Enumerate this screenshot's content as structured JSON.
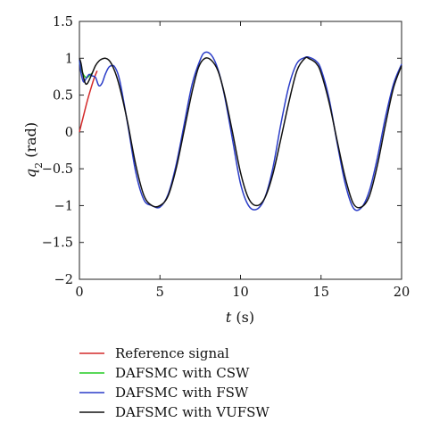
{
  "chart_data": {
    "type": "line",
    "title": "",
    "xlabel_var": "t",
    "xlabel_unit": " (s)",
    "ylabel_var": "q",
    "ylabel_sub": "2",
    "ylabel_unit": " (rad)",
    "xlim": [
      0,
      20
    ],
    "ylim": [
      -2,
      1.5
    ],
    "xticks": [
      0,
      5,
      10,
      15,
      20
    ],
    "xtick_labels": [
      "0",
      "5",
      "10",
      "15",
      "20"
    ],
    "yticks": [
      1.5,
      1,
      0.5,
      0,
      -0.5,
      -1,
      -1.5,
      -2
    ],
    "ytick_labels": [
      "1.5",
      "1",
      "0.5",
      "0",
      "−0.5",
      "−1",
      "−1.5",
      "−2"
    ],
    "grid": false,
    "legend_position": "below",
    "series": [
      {
        "name": "Reference signal",
        "color": "#d42a2a",
        "x": [
          0,
          0.15,
          0.3,
          0.5,
          0.7,
          0.9,
          1.1
        ],
        "y": [
          0,
          0.13,
          0.26,
          0.43,
          0.58,
          0.72,
          0.83
        ]
      },
      {
        "name": "DAFSMC with CSW",
        "color": "#22cc22",
        "x": [
          0,
          0.1,
          0.2,
          0.3,
          0.4,
          0.5,
          0.6,
          0.8
        ],
        "y": [
          0.95,
          0.86,
          0.8,
          0.76,
          0.74,
          0.74,
          0.76,
          0.8
        ]
      },
      {
        "name": "DAFSMC with FSW",
        "color": "#2a3cc8",
        "x": [
          0,
          0.1,
          0.25,
          0.4,
          0.6,
          0.8,
          1.0,
          1.2,
          1.4,
          1.6,
          1.8,
          2.0,
          2.2,
          2.5,
          3.0,
          3.5,
          4.0,
          4.5,
          5.0,
          5.5,
          6.0,
          6.5,
          7.0,
          7.5,
          7.8,
          8.2,
          8.6,
          9.0,
          9.5,
          10.0,
          10.5,
          11.0,
          11.5,
          12.0,
          12.5,
          13.0,
          13.5,
          14.0,
          14.3,
          14.7,
          15.0,
          15.5,
          16.0,
          16.5,
          17.0,
          17.5,
          18.0,
          18.5,
          19.0,
          19.5,
          20.0
        ],
        "y": [
          0.98,
          0.8,
          0.68,
          0.72,
          0.78,
          0.76,
          0.74,
          0.63,
          0.66,
          0.78,
          0.87,
          0.9,
          0.88,
          0.7,
          0.1,
          -0.55,
          -0.92,
          -1.0,
          -1.02,
          -0.85,
          -0.45,
          0.1,
          0.65,
          0.98,
          1.08,
          1.04,
          0.85,
          0.5,
          -0.1,
          -0.7,
          -1.0,
          -1.05,
          -0.9,
          -0.5,
          0.1,
          0.62,
          0.93,
          1.01,
          1.01,
          0.96,
          0.85,
          0.45,
          -0.15,
          -0.7,
          -1.03,
          -1.03,
          -0.8,
          -0.35,
          0.2,
          0.65,
          0.92
        ]
      },
      {
        "name": "DAFSMC with VUFSW",
        "color": "#111111",
        "x": [
          0,
          0.1,
          0.2,
          0.3,
          0.4,
          0.5,
          0.6,
          0.8,
          1.0,
          1.2,
          1.4,
          1.6,
          1.8,
          2.0,
          2.3,
          2.6,
          3.0,
          3.5,
          4.0,
          4.5,
          5.0,
          5.5,
          6.0,
          6.5,
          7.0,
          7.4,
          7.8,
          8.2,
          8.6,
          9.0,
          9.5,
          10.0,
          10.5,
          11.0,
          11.5,
          12.0,
          12.5,
          13.0,
          13.5,
          14.0,
          14.3,
          14.7,
          15.0,
          15.5,
          16.0,
          16.5,
          17.0,
          17.5,
          18.0,
          18.5,
          19.0,
          19.5,
          20.0
        ],
        "y": [
          1.0,
          0.93,
          0.8,
          0.7,
          0.65,
          0.66,
          0.7,
          0.8,
          0.9,
          0.96,
          0.99,
          1.0,
          0.98,
          0.92,
          0.76,
          0.52,
          0.12,
          -0.45,
          -0.86,
          -1.0,
          -1.0,
          -0.87,
          -0.5,
          0.02,
          0.55,
          0.88,
          1.0,
          0.97,
          0.83,
          0.52,
          0.0,
          -0.55,
          -0.9,
          -1.0,
          -0.9,
          -0.58,
          -0.1,
          0.4,
          0.83,
          1.0,
          0.99,
          0.93,
          0.8,
          0.4,
          -0.12,
          -0.62,
          -0.97,
          -1.02,
          -0.87,
          -0.45,
          0.1,
          0.6,
          0.9
        ]
      }
    ]
  }
}
